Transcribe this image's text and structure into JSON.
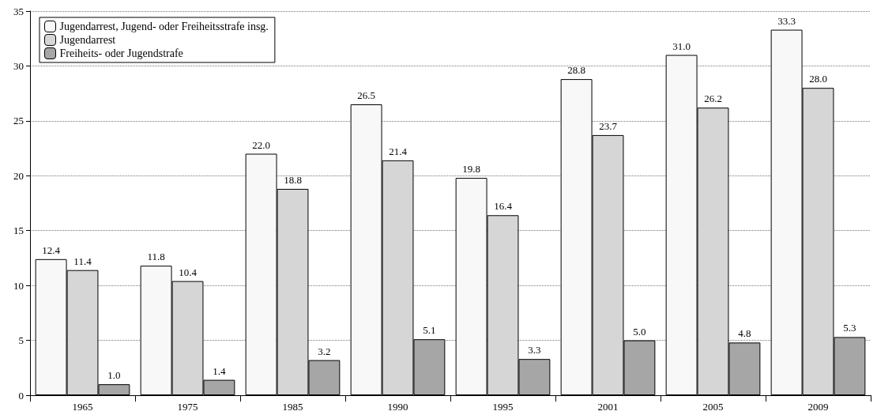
{
  "chart_data": {
    "type": "bar",
    "categories": [
      "1965",
      "1975",
      "1985",
      "1990",
      "1995",
      "2001",
      "2005",
      "2009"
    ],
    "series": [
      {
        "name": "Jugendarrest, Jugend- oder Freiheitsstrafe insg.",
        "color": "#f8f8f8",
        "values": [
          12.4,
          11.8,
          22.0,
          26.5,
          19.8,
          28.8,
          31.0,
          33.3
        ],
        "value_labels": [
          "12.4",
          "11.8",
          "22.0",
          "26.5",
          "19.8",
          "28.8",
          "31.0",
          "33.3"
        ]
      },
      {
        "name": "Jugendarrest",
        "color": "#d6d6d6",
        "values": [
          11.4,
          10.4,
          18.8,
          21.4,
          16.4,
          23.7,
          26.2,
          28.0
        ],
        "value_labels": [
          "11.4",
          "10.4",
          "18.8",
          "21.4",
          "16.4",
          "23.7",
          "26.2",
          "28.0"
        ]
      },
      {
        "name": "Freiheits- oder Jugendstrafe",
        "color": "#a6a6a6",
        "values": [
          1.0,
          1.4,
          3.2,
          5.1,
          3.3,
          5.0,
          4.8,
          5.3
        ],
        "value_labels": [
          "1.0",
          "1.4",
          "3.2",
          "5.1",
          "3.3",
          "5.0",
          "4.8",
          "5.3"
        ]
      }
    ],
    "ylim": [
      0,
      35
    ],
    "yticks": [
      0,
      5,
      10,
      15,
      20,
      25,
      30,
      35
    ],
    "grid": "y",
    "legend": "top left"
  }
}
